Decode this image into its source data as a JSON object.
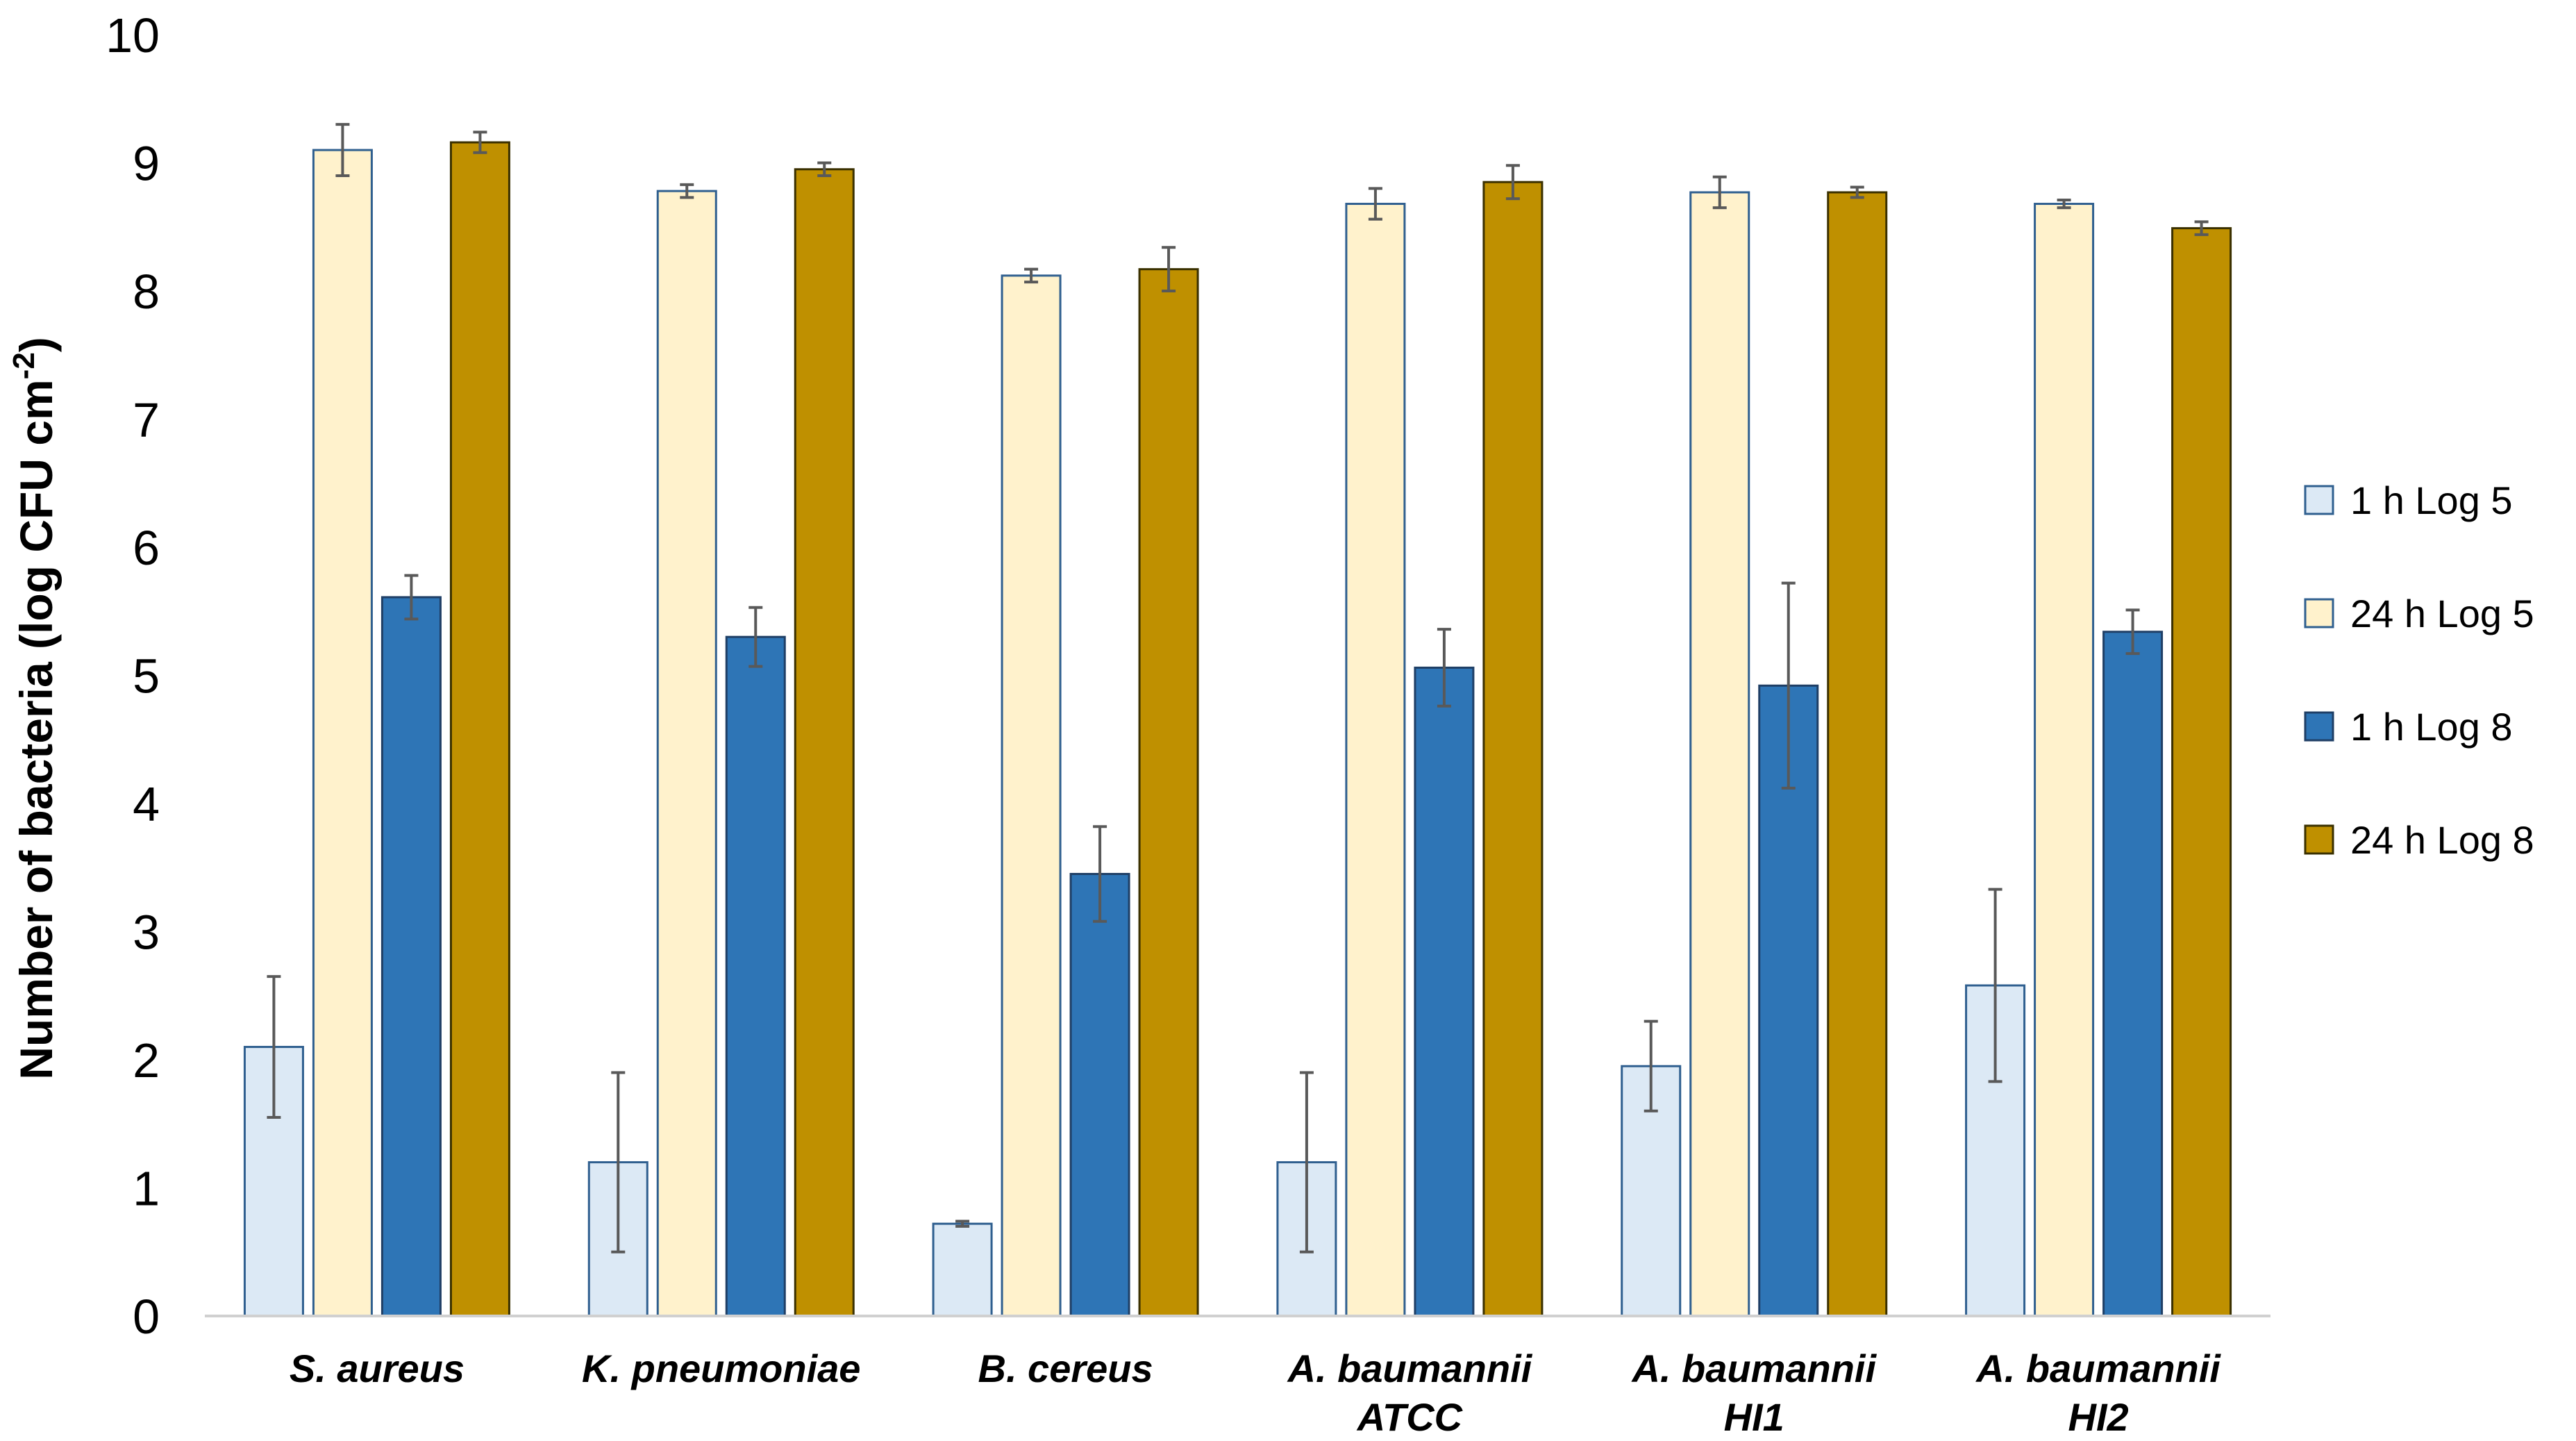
{
  "chart_data": {
    "type": "bar",
    "title": "",
    "xlabel": "",
    "ylabel": "Number of bacteria (log CFU cm",
    "ylabel_superscript": "-2",
    "ylabel_close": ")",
    "ylim": [
      0,
      10
    ],
    "yticks": [
      "0",
      "1",
      "2",
      "3",
      "4",
      "5",
      "6",
      "7",
      "8",
      "9",
      "10"
    ],
    "grid": false,
    "legend_position": "right",
    "categories": [
      [
        "S. aureus"
      ],
      [
        "K. pneumoniae"
      ],
      [
        "B. cereus"
      ],
      [
        "A. baumannii",
        "ATCC"
      ],
      [
        "A. baumannii",
        "HI1"
      ],
      [
        "A. baumannii",
        "HI2"
      ]
    ],
    "series": [
      {
        "name": "1 h Log 5",
        "color": "#dce9f5",
        "stroke": "#2f5f8f",
        "values": [
          2.1,
          1.2,
          0.72,
          1.2,
          1.95,
          2.58
        ],
        "errors": [
          0.55,
          0.7,
          0.02,
          0.7,
          0.35,
          0.75
        ]
      },
      {
        "name": "24 h Log 5",
        "color": "#fff2cc",
        "stroke": "#2f5f8f",
        "values": [
          9.1,
          8.78,
          8.12,
          8.68,
          8.77,
          8.68
        ],
        "errors": [
          0.2,
          0.05,
          0.05,
          0.12,
          0.12,
          0.03
        ]
      },
      {
        "name": "1 h Log 8",
        "color": "#2e75b6",
        "stroke": "#1f3f66",
        "values": [
          5.61,
          5.3,
          3.45,
          5.06,
          4.92,
          5.34
        ],
        "errors": [
          0.17,
          0.23,
          0.37,
          0.3,
          0.8,
          0.17
        ]
      },
      {
        "name": "24 h Log 8",
        "color": "#bf9000",
        "stroke": "#3a3000",
        "values": [
          9.16,
          8.95,
          8.17,
          8.85,
          8.77,
          8.49
        ],
        "errors": [
          0.08,
          0.05,
          0.17,
          0.13,
          0.04,
          0.05
        ]
      }
    ]
  }
}
